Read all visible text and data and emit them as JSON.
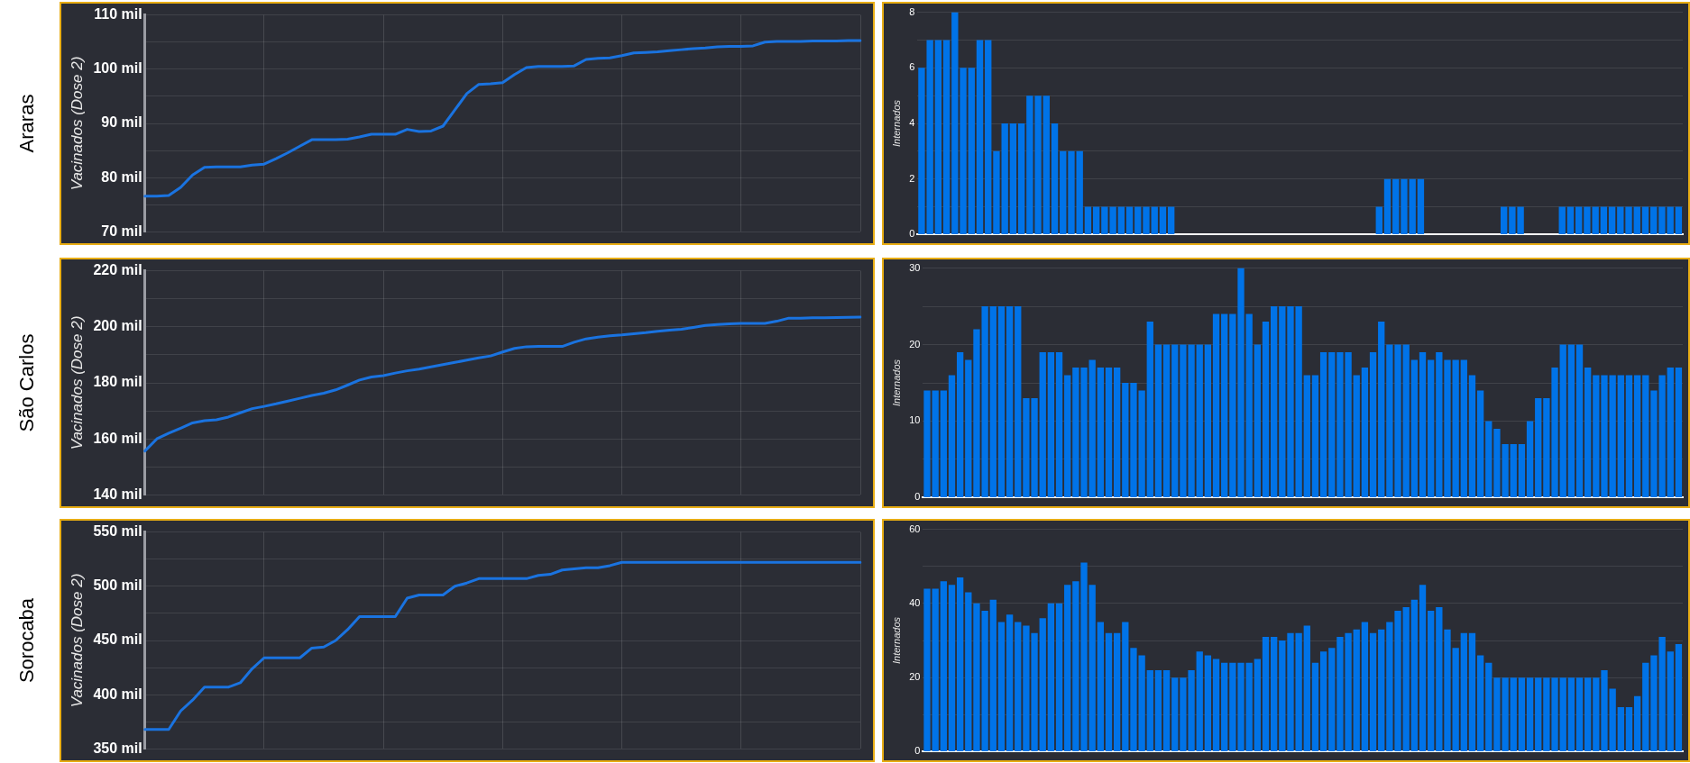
{
  "chart_data": [
    {
      "type": "line",
      "title": "Araras",
      "ylabel": "Vacinados (Dose 2)",
      "color": "#1a73e0",
      "marker": "none",
      "grid": true,
      "tick_labels": "y",
      "categories": [
        null,
        null,
        null,
        null,
        null,
        null,
        null,
        null,
        null,
        null,
        null,
        null,
        null,
        null,
        null,
        null,
        null,
        null,
        null,
        null,
        null,
        null,
        null,
        null,
        null,
        null,
        null,
        null,
        null,
        null,
        null,
        null,
        null,
        null,
        null,
        null,
        null,
        null,
        null,
        null,
        null,
        null,
        null,
        null,
        null,
        null,
        null,
        null,
        null,
        null,
        null,
        null,
        null,
        null,
        null,
        null,
        null,
        null,
        null,
        null,
        null
      ],
      "values": [
        76.6,
        76.6,
        76.7,
        78.2,
        80.5,
        81.9,
        82,
        82,
        82,
        82.3,
        82.5,
        83.5,
        84.6,
        85.8,
        87,
        87,
        87,
        87.1,
        87.5,
        88,
        88,
        88,
        88.9,
        88.5,
        88.6,
        89.5,
        92.5,
        95.5,
        97.2,
        97.3,
        97.5,
        99,
        100.3,
        100.5,
        100.5,
        100.5,
        100.6,
        101.8,
        102,
        102.1,
        102.5,
        103,
        103.1,
        103.2,
        103.4,
        103.6,
        103.8,
        103.9,
        104.1,
        104.2,
        104.2,
        104.3,
        105,
        105.1,
        105.1,
        105.1,
        105.2,
        105.2,
        105.2,
        105.3,
        105.3
      ],
      "ylim": [
        70,
        110
      ],
      "yticks": [
        {
          "value": 70,
          "label": "70 mil"
        },
        {
          "value": 75,
          "label": null
        },
        {
          "value": 80,
          "label": "80 mil"
        },
        {
          "value": 85,
          "label": null
        },
        {
          "value": 90,
          "label": "90 mil"
        },
        {
          "value": 95,
          "label": null
        },
        {
          "value": 100,
          "label": "100 mil"
        },
        {
          "value": 105,
          "label": null
        },
        {
          "value": 110,
          "label": "110 mil"
        }
      ]
    },
    {
      "type": "bar",
      "ylabel": "Internados",
      "color": "#0073e8",
      "grid": "y",
      "tick_labels": "y",
      "categories": [
        null,
        null,
        null,
        null,
        null,
        null,
        null,
        null,
        null,
        null,
        null,
        null,
        null,
        null,
        null,
        null,
        null,
        null,
        null,
        null,
        null,
        null,
        null,
        null,
        null,
        null,
        null,
        null,
        null,
        null,
        null,
        null,
        null,
        null,
        null,
        null,
        null,
        null,
        null,
        null,
        null,
        null,
        null,
        null,
        null,
        null,
        null,
        null,
        null,
        null,
        null,
        null,
        null,
        null,
        null,
        null,
        null,
        null,
        null,
        null,
        null,
        null,
        null,
        null,
        null,
        null,
        null,
        null,
        null,
        null,
        null,
        null,
        null,
        null,
        null,
        null,
        null,
        null,
        null,
        null,
        null,
        null,
        null,
        null,
        null,
        null,
        null,
        null,
        null,
        null,
        null,
        null
      ],
      "values": [
        6,
        7,
        7,
        7,
        8,
        6,
        6,
        7,
        7,
        3,
        4,
        4,
        4,
        5,
        5,
        5,
        4,
        3,
        3,
        3,
        1,
        1,
        1,
        1,
        1,
        1,
        1,
        1,
        1,
        1,
        1,
        0,
        0,
        0,
        0,
        0,
        0,
        0,
        0,
        0,
        0,
        0,
        0,
        0,
        0,
        0,
        0,
        0,
        0,
        0,
        0,
        0,
        0,
        0,
        0,
        1,
        2,
        2,
        2,
        2,
        2,
        0,
        0,
        0,
        0,
        0,
        0,
        0,
        0,
        0,
        1,
        1,
        1,
        0,
        0,
        0,
        0,
        1,
        1,
        1,
        1,
        1,
        1,
        1,
        1,
        1,
        1,
        1,
        1,
        1,
        1,
        1
      ],
      "ylim": [
        0,
        8
      ],
      "yticks": [
        0,
        {
          "value": 1,
          "label": null
        },
        2,
        {
          "value": 3,
          "label": null
        },
        4,
        {
          "value": 5,
          "label": null
        },
        6,
        {
          "value": 7,
          "label": null
        },
        8
      ]
    },
    {
      "type": "line",
      "title": "São Carlos",
      "ylabel": "Vacinados (Dose 2)",
      "color": "#1a73e0",
      "marker": "none",
      "grid": true,
      "tick_labels": "y",
      "categories": [
        null,
        null,
        null,
        null,
        null,
        null,
        null,
        null,
        null,
        null,
        null,
        null,
        null,
        null,
        null,
        null,
        null,
        null,
        null,
        null,
        null,
        null,
        null,
        null,
        null,
        null,
        null,
        null,
        null,
        null,
        null,
        null,
        null,
        null,
        null,
        null,
        null,
        null,
        null,
        null,
        null,
        null,
        null,
        null,
        null,
        null,
        null,
        null,
        null,
        null,
        null,
        null,
        null,
        null,
        null,
        null,
        null,
        null,
        null,
        null,
        null
      ],
      "values": [
        155.7,
        160,
        162,
        163.8,
        165.7,
        166.5,
        166.8,
        167.8,
        169.3,
        170.8,
        171.6,
        172.5,
        173.5,
        174.5,
        175.5,
        176.3,
        177.5,
        179.2,
        181,
        182.1,
        182.6,
        183.5,
        184.3,
        184.9,
        185.7,
        186.5,
        187.3,
        188.1,
        188.9,
        189.6,
        191,
        192.3,
        192.9,
        193,
        193,
        193,
        194.5,
        195.7,
        196.3,
        196.8,
        197.1,
        197.5,
        197.9,
        198.4,
        198.8,
        199.1,
        199.8,
        200.5,
        200.8,
        201.1,
        201.2,
        201.2,
        201.2,
        202,
        203.1,
        203.1,
        203.2,
        203.2,
        203.3,
        203.4,
        203.5
      ],
      "ylim": [
        140,
        220
      ],
      "yticks": [
        {
          "value": 140,
          "label": "140 mil"
        },
        {
          "value": 150,
          "label": null
        },
        {
          "value": 160,
          "label": "160 mil"
        },
        {
          "value": 170,
          "label": null
        },
        {
          "value": 180,
          "label": "180 mil"
        },
        {
          "value": 190,
          "label": null
        },
        {
          "value": 200,
          "label": "200 mil"
        },
        {
          "value": 210,
          "label": null
        },
        {
          "value": 220,
          "label": "220 mil"
        }
      ]
    },
    {
      "type": "bar",
      "ylabel": "Internados",
      "color": "#0073e8",
      "grid": "y",
      "tick_labels": "y",
      "categories": [
        null,
        null,
        null,
        null,
        null,
        null,
        null,
        null,
        null,
        null,
        null,
        null,
        null,
        null,
        null,
        null,
        null,
        null,
        null,
        null,
        null,
        null,
        null,
        null,
        null,
        null,
        null,
        null,
        null,
        null,
        null,
        null,
        null,
        null,
        null,
        null,
        null,
        null,
        null,
        null,
        null,
        null,
        null,
        null,
        null,
        null,
        null,
        null,
        null,
        null,
        null,
        null,
        null,
        null,
        null,
        null,
        null,
        null,
        null,
        null,
        null,
        null,
        null,
        null,
        null,
        null,
        null,
        null,
        null,
        null,
        null,
        null,
        null,
        null,
        null,
        null,
        null,
        null,
        null,
        null,
        null,
        null,
        null,
        null,
        null,
        null,
        null,
        null,
        null,
        null,
        null,
        null
      ],
      "values": [
        14,
        14,
        14,
        16,
        19,
        18,
        22,
        25,
        25,
        25,
        25,
        25,
        13,
        13,
        19,
        19,
        19,
        16,
        17,
        17,
        18,
        17,
        17,
        17,
        15,
        15,
        14,
        23,
        20,
        20,
        20,
        20,
        20,
        20,
        20,
        24,
        24,
        24,
        30,
        24,
        20,
        23,
        25,
        25,
        25,
        25,
        16,
        16,
        19,
        19,
        19,
        19,
        16,
        17,
        19,
        23,
        20,
        20,
        20,
        18,
        19,
        18,
        19,
        18,
        18,
        18,
        16,
        14,
        10,
        9,
        7,
        7,
        7,
        10,
        13,
        13,
        17,
        20,
        20,
        20,
        17,
        16,
        16,
        16,
        16,
        16,
        16,
        16,
        14,
        16,
        17,
        17
      ],
      "ylim": [
        0,
        30
      ],
      "yticks": [
        0,
        {
          "value": 5,
          "label": null
        },
        10,
        {
          "value": 15,
          "label": null
        },
        20,
        {
          "value": 25,
          "label": null
        },
        30
      ]
    },
    {
      "type": "line",
      "title": "Sorocaba",
      "ylabel": "Vacinados (Dose 2)",
      "color": "#1a73e0",
      "marker": "none",
      "grid": true,
      "tick_labels": "y",
      "categories": [
        null,
        null,
        null,
        null,
        null,
        null,
        null,
        null,
        null,
        null,
        null,
        null,
        null,
        null,
        null,
        null,
        null,
        null,
        null,
        null,
        null,
        null,
        null,
        null,
        null,
        null,
        null,
        null,
        null,
        null,
        null,
        null,
        null,
        null,
        null,
        null,
        null,
        null,
        null,
        null,
        null,
        null,
        null,
        null,
        null,
        null,
        null,
        null,
        null,
        null,
        null,
        null,
        null,
        null,
        null,
        null,
        null,
        null,
        null,
        null,
        null
      ],
      "values": [
        368,
        368,
        368,
        385,
        395,
        407,
        407,
        407,
        411,
        424,
        434,
        434,
        434,
        434,
        443,
        444,
        450,
        460,
        472,
        472,
        472,
        472,
        489,
        492,
        492,
        492,
        500,
        503,
        507,
        507,
        507,
        507,
        507,
        510,
        511,
        515,
        516,
        517,
        517,
        519,
        522,
        522,
        522,
        522,
        522,
        522,
        522,
        522,
        522,
        522,
        522,
        522,
        522,
        522,
        522,
        522,
        522,
        522,
        522,
        522,
        522
      ],
      "ylim": [
        350,
        550
      ],
      "yticks": [
        {
          "value": 350,
          "label": "350 mil"
        },
        {
          "value": 375,
          "label": null
        },
        {
          "value": 400,
          "label": "400 mil"
        },
        {
          "value": 425,
          "label": null
        },
        {
          "value": 450,
          "label": "450 mil"
        },
        {
          "value": 475,
          "label": null
        },
        {
          "value": 500,
          "label": "500 mil"
        },
        {
          "value": 525,
          "label": null
        },
        {
          "value": 550,
          "label": "550 mil"
        }
      ]
    },
    {
      "type": "bar",
      "ylabel": "Internados",
      "color": "#0073e8",
      "grid": "y",
      "tick_labels": "y",
      "categories": [
        null,
        null,
        null,
        null,
        null,
        null,
        null,
        null,
        null,
        null,
        null,
        null,
        null,
        null,
        null,
        null,
        null,
        null,
        null,
        null,
        null,
        null,
        null,
        null,
        null,
        null,
        null,
        null,
        null,
        null,
        null,
        null,
        null,
        null,
        null,
        null,
        null,
        null,
        null,
        null,
        null,
        null,
        null,
        null,
        null,
        null,
        null,
        null,
        null,
        null,
        null,
        null,
        null,
        null,
        null,
        null,
        null,
        null,
        null,
        null,
        null,
        null,
        null,
        null,
        null,
        null,
        null,
        null,
        null,
        null,
        null,
        null,
        null,
        null,
        null,
        null,
        null,
        null,
        null,
        null,
        null,
        null,
        null,
        null,
        null,
        null,
        null,
        null,
        null,
        null,
        null,
        null
      ],
      "values": [
        44,
        44,
        46,
        45,
        47,
        43,
        40,
        38,
        41,
        35,
        37,
        35,
        34,
        32,
        36,
        40,
        40,
        45,
        46,
        51,
        45,
        35,
        32,
        32,
        35,
        28,
        26,
        22,
        22,
        22,
        20,
        20,
        22,
        27,
        26,
        25,
        24,
        24,
        24,
        24,
        25,
        31,
        31,
        30,
        32,
        32,
        34,
        24,
        27,
        28,
        31,
        32,
        33,
        35,
        32,
        33,
        35,
        38,
        39,
        41,
        45,
        38,
        39,
        33,
        28,
        32,
        32,
        26,
        24,
        20,
        20,
        20,
        20,
        20,
        20,
        20,
        20,
        20,
        20,
        20,
        20,
        20,
        22,
        17,
        12,
        12,
        15,
        24,
        26,
        31,
        27,
        29
      ],
      "ylim": [
        0,
        60
      ],
      "yticks": [
        0,
        {
          "value": 10,
          "label": null
        },
        20,
        {
          "value": 30,
          "label": null
        },
        40,
        {
          "value": 50,
          "label": null
        },
        60
      ]
    }
  ]
}
